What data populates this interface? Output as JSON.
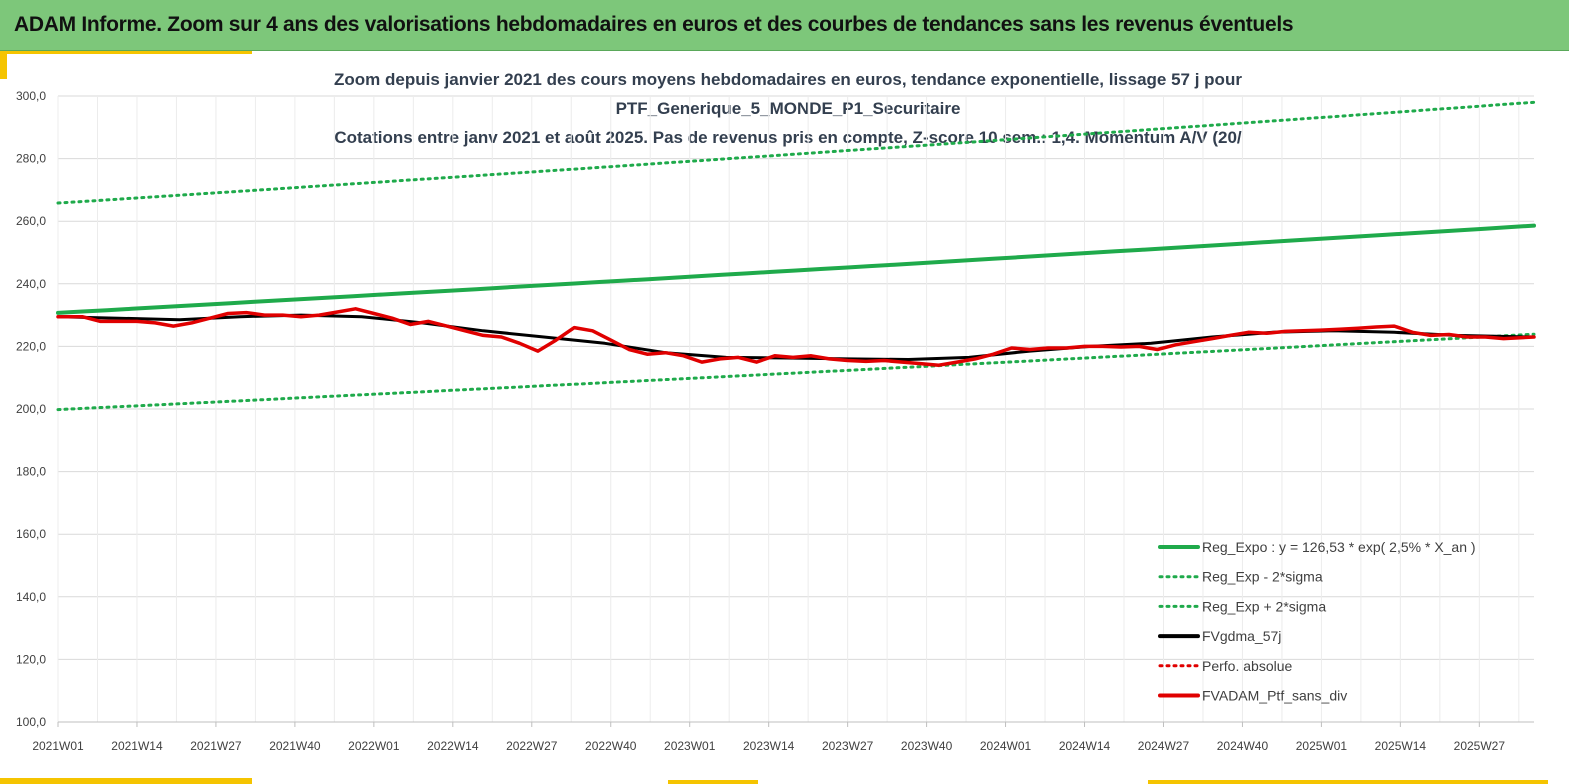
{
  "banner": {
    "title": "ADAM Informe. Zoom sur 4 ans des valorisations hebdomadaires en euros et des courbes de tendances sans les revenus éventuels"
  },
  "colors": {
    "banner_bg": "#7dc77a",
    "accent": "#f5c400",
    "trend": "#1faa4b",
    "smooth": "#000000",
    "price": "#e00000"
  },
  "chart_data": {
    "type": "line",
    "title_lines": [
      "Zoom depuis janvier 2021 des cours moyens hebdomadaires  en euros, tendance exponentielle, lissage 57 j pour",
      "PTF_Generique_5_MONDE_P1_Securitaire",
      "Cotations entre janv 2021 et août 2025. Pas de revenus pris en compte, Z-score 10 sem.: 1,4. Momentum  A/V (20/"
    ],
    "ylim": [
      100,
      300
    ],
    "yticks": [
      "100,0",
      "120,0",
      "140,0",
      "160,0",
      "180,0",
      "200,0",
      "220,0",
      "240,0",
      "260,0",
      "280,0",
      "300,0"
    ],
    "xlim": [
      0,
      243
    ],
    "xtick_labels": [
      {
        "i": 0,
        "label": "2021W01"
      },
      {
        "i": 13,
        "label": "2021W14"
      },
      {
        "i": 26,
        "label": "2021W27"
      },
      {
        "i": 39,
        "label": "2021W40"
      },
      {
        "i": 52,
        "label": "2022W01"
      },
      {
        "i": 65,
        "label": "2022W14"
      },
      {
        "i": 78,
        "label": "2022W27"
      },
      {
        "i": 91,
        "label": "2022W40"
      },
      {
        "i": 104,
        "label": "2023W01"
      },
      {
        "i": 117,
        "label": "2023W14"
      },
      {
        "i": 130,
        "label": "2023W27"
      },
      {
        "i": 143,
        "label": "2023W40"
      },
      {
        "i": 156,
        "label": "2024W01"
      },
      {
        "i": 169,
        "label": "2024W14"
      },
      {
        "i": 182,
        "label": "2024W27"
      },
      {
        "i": 195,
        "label": "2024W40"
      },
      {
        "i": 208,
        "label": "2025W01"
      },
      {
        "i": 221,
        "label": "2025W14"
      },
      {
        "i": 234,
        "label": "2025W27"
      }
    ],
    "grid": true,
    "legend_position": "bottom-right",
    "legend": [
      {
        "label": "Reg_Expo : y = 126,53 * exp( 2,5% *  X_an )",
        "style": "solid",
        "color": "#1faa4b"
      },
      {
        "label": "Reg_Exp - 2*sigma",
        "style": "dotted",
        "color": "#1faa4b"
      },
      {
        "label": "Reg_Exp + 2*sigma",
        "style": "dotted",
        "color": "#1faa4b"
      },
      {
        "label": "FVgdma_57j",
        "style": "solid",
        "color": "#000000"
      },
      {
        "label": "Perfo. absolue",
        "style": "dotted",
        "color": "#e00000"
      },
      {
        "label": "FVADAM_Ptf_sans_div",
        "style": "solid",
        "color": "#e00000"
      }
    ],
    "series": [
      {
        "name": "Reg_Expo : y = 126,53 * exp( 2,5% *  X_an )",
        "kind": "exp",
        "start": 230.7,
        "end": 258.6
      },
      {
        "name": "Reg_Exp - 2*sigma",
        "kind": "exp",
        "start": 199.8,
        "end": 223.9
      },
      {
        "name": "Reg_Exp + 2*sigma",
        "kind": "exp",
        "start": 265.8,
        "end": 298.0
      },
      {
        "name": "FVgdma_57j",
        "kind": "points",
        "points": [
          [
            0,
            229.5
          ],
          [
            10,
            229
          ],
          [
            20,
            228.5
          ],
          [
            30,
            229.5
          ],
          [
            40,
            230
          ],
          [
            50,
            229.5
          ],
          [
            60,
            227.5
          ],
          [
            70,
            225
          ],
          [
            80,
            223
          ],
          [
            90,
            221
          ],
          [
            100,
            218
          ],
          [
            110,
            216.5
          ],
          [
            120,
            216.3
          ],
          [
            130,
            216
          ],
          [
            140,
            215.8
          ],
          [
            150,
            216.5
          ],
          [
            160,
            218.5
          ],
          [
            170,
            220
          ],
          [
            180,
            221
          ],
          [
            190,
            223
          ],
          [
            200,
            224.5
          ],
          [
            210,
            225
          ],
          [
            220,
            224.5
          ],
          [
            230,
            223.5
          ],
          [
            243,
            223
          ]
        ]
      },
      {
        "name": "FVADAM_Ptf_sans_div",
        "kind": "points",
        "points": [
          [
            0,
            229.5
          ],
          [
            4,
            229.5
          ],
          [
            7,
            228
          ],
          [
            10,
            228
          ],
          [
            13,
            228
          ],
          [
            16,
            227.5
          ],
          [
            19,
            226.5
          ],
          [
            22,
            227.5
          ],
          [
            25,
            229
          ],
          [
            28,
            230.5
          ],
          [
            31,
            230.8
          ],
          [
            34,
            230
          ],
          [
            37,
            230
          ],
          [
            40,
            229.5
          ],
          [
            43,
            230
          ],
          [
            46,
            231
          ],
          [
            49,
            232
          ],
          [
            52,
            230.5
          ],
          [
            55,
            229
          ],
          [
            58,
            227
          ],
          [
            61,
            228
          ],
          [
            64,
            226.5
          ],
          [
            67,
            225
          ],
          [
            70,
            223.5
          ],
          [
            73,
            223
          ],
          [
            76,
            221
          ],
          [
            79,
            218.5
          ],
          [
            82,
            222
          ],
          [
            85,
            226
          ],
          [
            88,
            225
          ],
          [
            91,
            222
          ],
          [
            94,
            219
          ],
          [
            97,
            217.5
          ],
          [
            100,
            218
          ],
          [
            103,
            217
          ],
          [
            106,
            215
          ],
          [
            109,
            216
          ],
          [
            112,
            216.5
          ],
          [
            115,
            215
          ],
          [
            118,
            217
          ],
          [
            121,
            216.5
          ],
          [
            124,
            217
          ],
          [
            127,
            216
          ],
          [
            130,
            215.5
          ],
          [
            133,
            215.2
          ],
          [
            136,
            215.5
          ],
          [
            139,
            215
          ],
          [
            142,
            214.5
          ],
          [
            145,
            214
          ],
          [
            148,
            215
          ],
          [
            151,
            216
          ],
          [
            154,
            217.5
          ],
          [
            157,
            219.5
          ],
          [
            160,
            219
          ],
          [
            163,
            219.5
          ],
          [
            166,
            219.5
          ],
          [
            169,
            220
          ],
          [
            172,
            220
          ],
          [
            175,
            219.8
          ],
          [
            178,
            220
          ],
          [
            181,
            219
          ],
          [
            184,
            220.5
          ],
          [
            187,
            221.5
          ],
          [
            190,
            222.5
          ],
          [
            193,
            223.5
          ],
          [
            196,
            224.5
          ],
          [
            199,
            224.2
          ],
          [
            202,
            224.8
          ],
          [
            205,
            225
          ],
          [
            208,
            225.2
          ],
          [
            211,
            225.5
          ],
          [
            214,
            225.8
          ],
          [
            217,
            226.2
          ],
          [
            220,
            226.5
          ],
          [
            223,
            224.5
          ],
          [
            226,
            223.5
          ],
          [
            229,
            223.8
          ],
          [
            232,
            223
          ],
          [
            235,
            223
          ],
          [
            238,
            222.5
          ],
          [
            243,
            223
          ]
        ]
      }
    ]
  }
}
